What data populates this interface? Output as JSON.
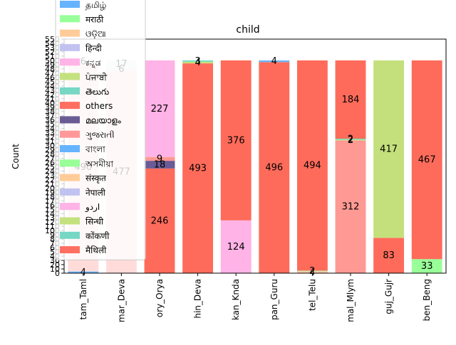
{
  "chart_data": {
    "type": "bar",
    "stacked": true,
    "title": "child",
    "xlabel": "",
    "ylabel": "Count",
    "ylim": [
      0,
      550
    ],
    "yticks": [
      0,
      10,
      20,
      30,
      40,
      50,
      60,
      70,
      80,
      90,
      100,
      110,
      120,
      130,
      140,
      150,
      160,
      170,
      180,
      190,
      200,
      210,
      220,
      230,
      240,
      250,
      260,
      270,
      280,
      290,
      300,
      310,
      320,
      330,
      340,
      350,
      360,
      370,
      380,
      390,
      400,
      410,
      420,
      430,
      440,
      450,
      460,
      470,
      480,
      490,
      500,
      510,
      520,
      530,
      540,
      550
    ],
    "grid": false,
    "legend_position": "upper-left",
    "categories": [
      "tam_Taml",
      "mar_Deva",
      "ory_Orya",
      "hin_Deva",
      "kan_Knda",
      "pan_Guru",
      "tel_Telu",
      "mal_Mlym",
      "guj_Gujr",
      "ben_Beng"
    ],
    "bars": [
      {
        "category": "tam_Taml",
        "segments": [
          {
            "label": "",
            "value": 4,
            "color": "#6ab4f7",
            "shown": "4"
          },
          {
            "label": "",
            "value": 490,
            "color": "#ffdcda",
            "shown": "490"
          },
          {
            "label": "",
            "value": 6,
            "color": "#e9f4f0",
            "shown": "6"
          }
        ]
      },
      {
        "category": "mar_Deva",
        "segments": [
          {
            "label": "",
            "value": 477,
            "color": "#ffdcda",
            "shown": "477"
          },
          {
            "label": "",
            "value": 6,
            "color": "#e4f1ee",
            "shown": "6"
          },
          {
            "label": "",
            "value": 17,
            "color": "#e4f4f0",
            "shown": "17"
          }
        ]
      },
      {
        "category": "ory_Orya",
        "segments": [
          {
            "label": "others",
            "value": 246,
            "color": "#ff6b5b",
            "shown": "246"
          },
          {
            "label": "",
            "value": 18,
            "color": "#6a5a96",
            "shown": "18"
          },
          {
            "label": "",
            "value": 9,
            "color": "#ff9993",
            "shown": "9"
          },
          {
            "label": "",
            "value": 227,
            "color": "#ffb3e6",
            "shown": "227"
          }
        ]
      },
      {
        "category": "hin_Deva",
        "segments": [
          {
            "label": "others",
            "value": 493,
            "color": "#ff6b5b",
            "shown": "493"
          },
          {
            "label": "",
            "value": 4,
            "color": "#c4e07c",
            "shown": "4"
          },
          {
            "label": "",
            "value": 3,
            "color": "#6ad9c2",
            "shown": "3"
          }
        ]
      },
      {
        "category": "kan_Knda",
        "segments": [
          {
            "label": "",
            "value": 124,
            "color": "#ffb3e6",
            "shown": "124"
          },
          {
            "label": "others",
            "value": 376,
            "color": "#ff6b5b",
            "shown": "376"
          }
        ]
      },
      {
        "category": "pan_Guru",
        "segments": [
          {
            "label": "others",
            "value": 496,
            "color": "#ff6b5b",
            "shown": "496"
          },
          {
            "label": "",
            "value": 4,
            "color": "#6ab4f7",
            "shown": "4"
          }
        ]
      },
      {
        "category": "tel_Telu",
        "segments": [
          {
            "label": "",
            "value": 4,
            "color": "#ffc8a8",
            "shown": "4"
          },
          {
            "label": "",
            "value": 2,
            "color": "#b6e0a0",
            "shown": "2"
          },
          {
            "label": "others",
            "value": 494,
            "color": "#ff6b5b",
            "shown": "494"
          }
        ]
      },
      {
        "category": "mal_Mlym",
        "segments": [
          {
            "label": "",
            "value": 312,
            "color": "#ff9993",
            "shown": "312"
          },
          {
            "label": "",
            "value": 2,
            "color": "#c4e07c",
            "shown": "2"
          },
          {
            "label": "",
            "value": 2,
            "color": "#6ad9c2",
            "shown": "2"
          },
          {
            "label": "",
            "value": 184,
            "color": "#ff6b5b",
            "shown": "184"
          }
        ]
      },
      {
        "category": "guj_Gujr",
        "segments": [
          {
            "label": "",
            "value": 83,
            "color": "#ff6b5b",
            "shown": "83"
          },
          {
            "label": "",
            "value": 417,
            "color": "#c4e07c",
            "shown": "417"
          }
        ]
      },
      {
        "category": "ben_Beng",
        "segments": [
          {
            "label": "",
            "value": 33,
            "color": "#99ff99",
            "shown": "33"
          },
          {
            "label": "others",
            "value": 467,
            "color": "#ff6b5b",
            "shown": "467"
          }
        ]
      }
    ],
    "legend": [
      {
        "label": "தமிழ்",
        "color": "#66b3ff"
      },
      {
        "label": "मराठी",
        "color": "#99ff99"
      },
      {
        "label": "ଓଡ଼ିଆ",
        "color": "#ffcc99"
      },
      {
        "label": "हिन्दी",
        "color": "#c2c2f0"
      },
      {
        "label": "ಕನ್ನಡ",
        "color": "#ffb3e6"
      },
      {
        "label": "ਪੰਜਾਬੀ",
        "color": "#c4e17f"
      },
      {
        "label": "తెలుగు",
        "color": "#76d7c4"
      },
      {
        "label": "others",
        "color": "#ff6f61"
      },
      {
        "label": "മലയാളം",
        "color": "#6b5b95"
      },
      {
        "label": "ગુજરાતી",
        "color": "#ff9999"
      },
      {
        "label": "বাংলা",
        "color": "#66b3ff"
      },
      {
        "label": "অসমীয়া",
        "color": "#99ff99"
      },
      {
        "label": "संस्कृत",
        "color": "#ffcc99"
      },
      {
        "label": "नेपाली",
        "color": "#c2c2f0"
      },
      {
        "label": "اردو",
        "color": "#ffb3e6"
      },
      {
        "label": "सिन्धी",
        "color": "#c4e17f"
      },
      {
        "label": "कोंकणी",
        "color": "#76d7c4"
      },
      {
        "label": "मैथिली",
        "color": "#ff6f61"
      }
    ]
  }
}
